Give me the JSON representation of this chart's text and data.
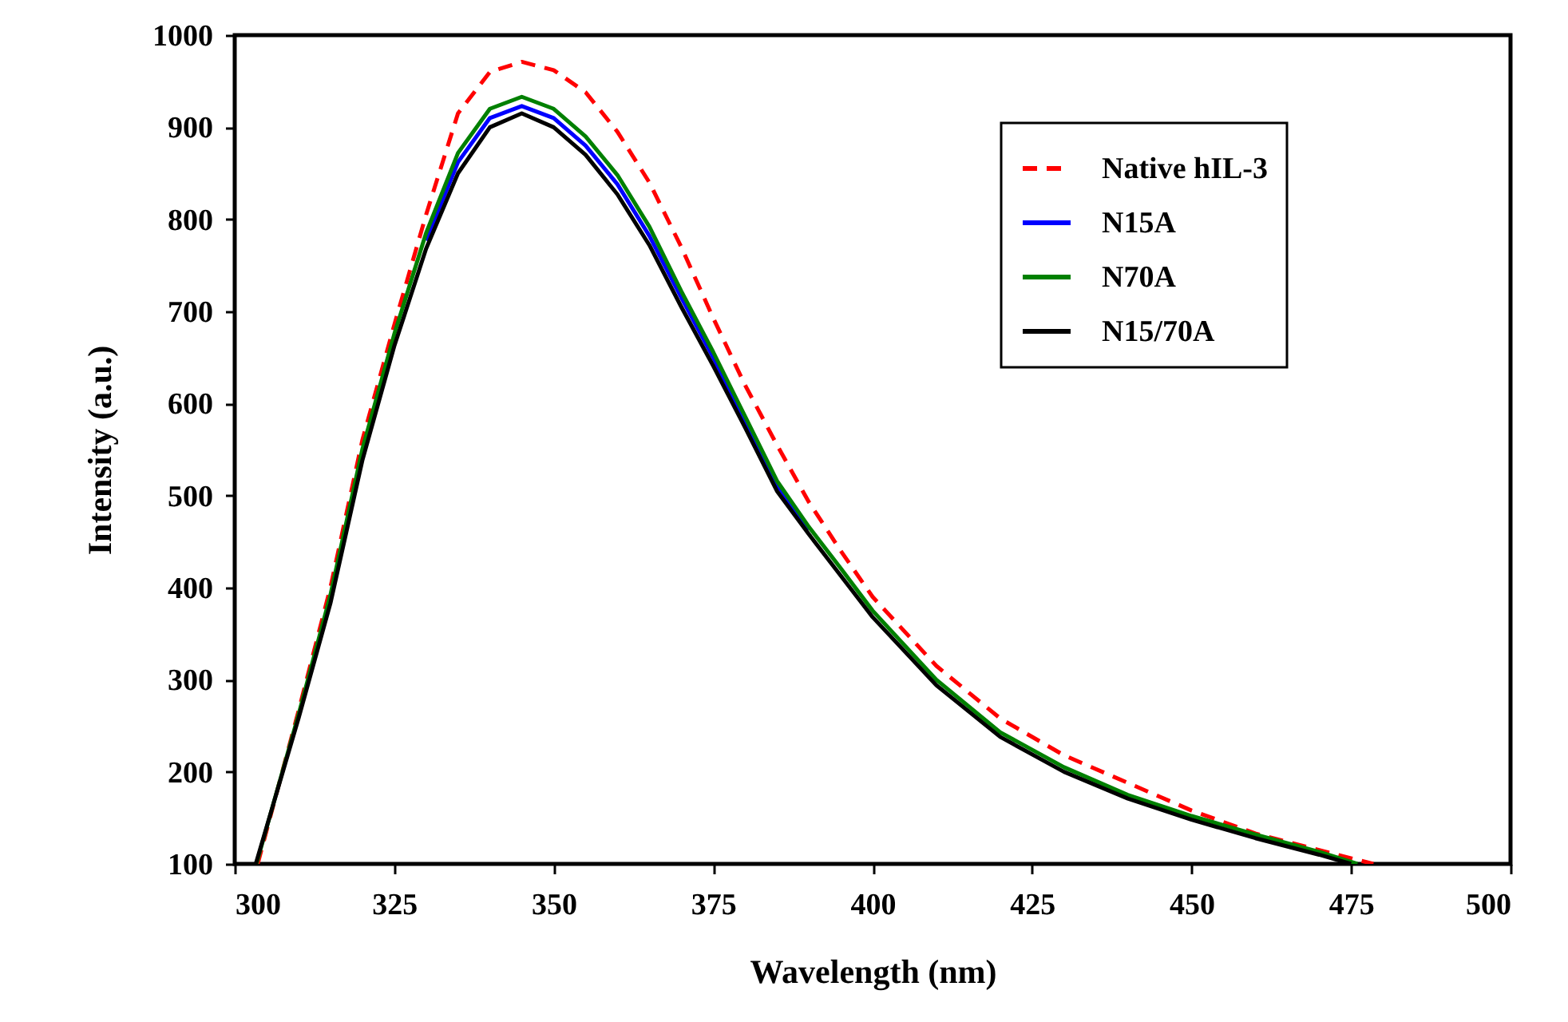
{
  "chart_data": {
    "type": "line",
    "xlabel": "Wavelength (nm)",
    "ylabel": "Intensity (a.u.)",
    "xlim": [
      300,
      500
    ],
    "xticks": [
      300,
      325,
      350,
      375,
      400,
      425,
      450,
      475,
      500
    ],
    "ylim": [
      100,
      1000
    ],
    "yticks": [
      100,
      200,
      300,
      400,
      500,
      600,
      700,
      800,
      900,
      1000
    ],
    "grid": false,
    "legend": "top right",
    "marker": "none",
    "series": [
      {
        "name": "Native hIL-3",
        "color": "#ff0000",
        "line_style": "dashed",
        "x": [
          303.6,
          310,
          315,
          320,
          325,
          330,
          335,
          340,
          345,
          350,
          355,
          360,
          365,
          370,
          375,
          380,
          385,
          390,
          395,
          400,
          410,
          420,
          430,
          440,
          450,
          460,
          470,
          478.5
        ],
        "values": [
          100,
          266,
          400,
          560,
          685,
          805,
          915,
          960,
          971,
          962,
          938,
          895,
          840,
          770,
          693,
          620,
          555,
          493,
          440,
          390,
          315,
          258,
          218,
          188,
          158,
          133,
          115,
          100
        ]
      },
      {
        "name": "N15A",
        "color": "#0000ff",
        "line_style": "solid",
        "x": [
          330,
          335,
          340,
          345,
          350,
          355,
          360,
          365,
          370,
          375,
          380,
          385,
          390
        ],
        "values": [
          777,
          862,
          910,
          923,
          910,
          880,
          838,
          782,
          715,
          650,
          582,
          512,
          463
        ]
      },
      {
        "name": "N70A",
        "color": "#008000",
        "line_style": "solid",
        "x": [
          303.4,
          310,
          315,
          320,
          325,
          330,
          335,
          340,
          345,
          350,
          355,
          360,
          365,
          370,
          375,
          380,
          385,
          390,
          395,
          400,
          410,
          420,
          430,
          440,
          450,
          460,
          470,
          476
        ],
        "values": [
          100,
          262,
          392,
          550,
          675,
          785,
          872,
          920,
          933,
          920,
          890,
          848,
          792,
          722,
          656,
          586,
          516,
          466,
          421,
          375,
          300,
          243,
          205,
          175,
          152,
          132,
          113,
          100
        ]
      },
      {
        "name": "N15/70A",
        "color": "#000000",
        "line_style": "solid",
        "x": [
          303.3,
          310,
          315,
          320,
          325,
          330,
          335,
          340,
          345,
          350,
          355,
          360,
          365,
          370,
          375,
          380,
          385,
          390,
          395,
          400,
          410,
          420,
          430,
          440,
          450,
          460,
          470,
          475
        ],
        "values": [
          100,
          258,
          383,
          538,
          662,
          768,
          850,
          900,
          915,
          900,
          870,
          827,
          772,
          705,
          641,
          574,
          505,
          458,
          413,
          368,
          294,
          238,
          200,
          171,
          148,
          128,
          110,
          100
        ]
      }
    ]
  }
}
